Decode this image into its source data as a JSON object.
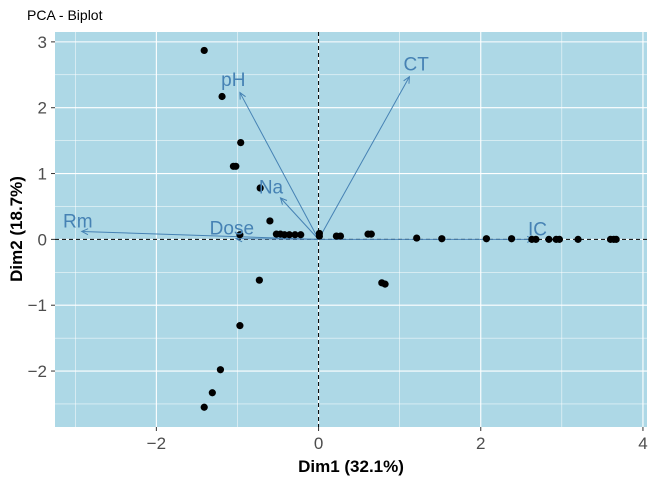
{
  "chart_data": {
    "type": "scatter",
    "subtype": "pca-biplot",
    "title": "PCA - Biplot",
    "xlabel": "Dim1 (32.1%)",
    "ylabel": "Dim2 (18.7%)",
    "xlim": [
      -3.25,
      4.05
    ],
    "ylim": [
      -2.85,
      3.15
    ],
    "xticks": [
      -2,
      0,
      2,
      4
    ],
    "yticks": [
      -2,
      -1,
      0,
      1,
      2,
      3
    ],
    "grid": true,
    "background": "#add8e6",
    "point_color": "#000000",
    "vector_color": "#4682b4",
    "points": [
      {
        "x": -1.41,
        "y": 2.87
      },
      {
        "x": -1.19,
        "y": 2.17
      },
      {
        "x": -0.96,
        "y": 1.47
      },
      {
        "x": -1.02,
        "y": 1.11
      },
      {
        "x": -1.05,
        "y": 1.11
      },
      {
        "x": -0.72,
        "y": 0.78
      },
      {
        "x": -0.6,
        "y": 0.28
      },
      {
        "x": -0.97,
        "y": 0.07
      },
      {
        "x": -0.52,
        "y": 0.08
      },
      {
        "x": -0.47,
        "y": 0.08
      },
      {
        "x": -0.42,
        "y": 0.07
      },
      {
        "x": -0.36,
        "y": 0.07
      },
      {
        "x": -0.29,
        "y": 0.07
      },
      {
        "x": -0.22,
        "y": 0.07
      },
      {
        "x": 0.01,
        "y": 0.09
      },
      {
        "x": 0.01,
        "y": 0.05
      },
      {
        "x": 0.22,
        "y": 0.05
      },
      {
        "x": 0.27,
        "y": 0.05
      },
      {
        "x": 0.61,
        "y": 0.08
      },
      {
        "x": 0.65,
        "y": 0.08
      },
      {
        "x": 0.78,
        "y": -0.66
      },
      {
        "x": 0.82,
        "y": -0.68
      },
      {
        "x": -0.73,
        "y": -0.62
      },
      {
        "x": -0.97,
        "y": -1.31
      },
      {
        "x": -1.21,
        "y": -1.98
      },
      {
        "x": -1.31,
        "y": -2.33
      },
      {
        "x": -1.41,
        "y": -2.55
      },
      {
        "x": 1.21,
        "y": 0.02
      },
      {
        "x": 1.52,
        "y": 0.01
      },
      {
        "x": 2.07,
        "y": 0.01
      },
      {
        "x": 2.38,
        "y": 0.01
      },
      {
        "x": 2.63,
        "y": 0.0
      },
      {
        "x": 2.68,
        "y": 0.0
      },
      {
        "x": 2.84,
        "y": 0.0
      },
      {
        "x": 2.93,
        "y": 0.0
      },
      {
        "x": 2.97,
        "y": 0.0
      },
      {
        "x": 3.2,
        "y": 0.0
      },
      {
        "x": 3.6,
        "y": 0.0
      },
      {
        "x": 3.64,
        "y": 0.0
      },
      {
        "x": 3.67,
        "y": 0.0
      }
    ],
    "vectors": [
      {
        "name": "Rm",
        "x": -2.92,
        "y": 0.12
      },
      {
        "name": "Dose",
        "x": -1.02,
        "y": 0.01
      },
      {
        "name": "pH",
        "x": -0.97,
        "y": 2.23
      },
      {
        "name": "Na",
        "x": -0.47,
        "y": 0.63
      },
      {
        "name": "CT",
        "x": 1.12,
        "y": 2.47
      },
      {
        "name": "IC",
        "x": 2.65,
        "y": 0.0
      }
    ]
  }
}
